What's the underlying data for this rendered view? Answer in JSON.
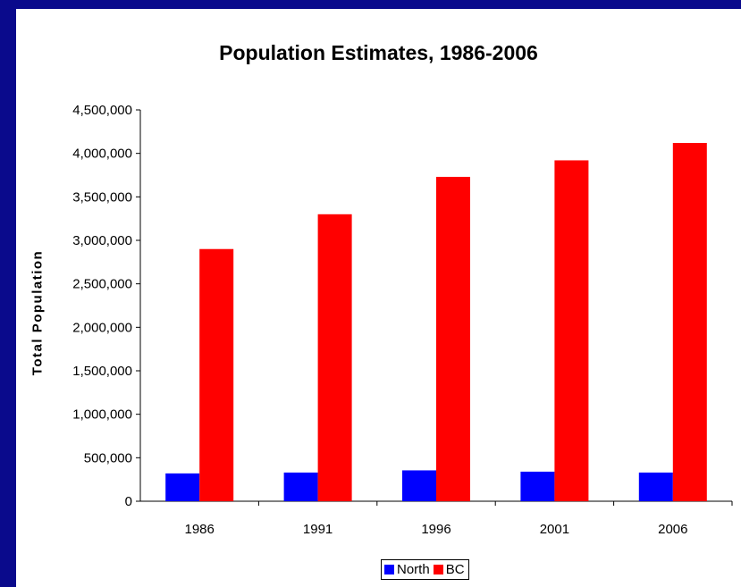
{
  "chart_data": {
    "type": "bar",
    "title": "Population Estimates, 1986-2006",
    "xlabel": "",
    "ylabel": "Total Population",
    "categories": [
      "1986",
      "1991",
      "1996",
      "2001",
      "2006"
    ],
    "series": [
      {
        "name": "North",
        "color": "#0000ff",
        "values": [
          320000,
          330000,
          355000,
          340000,
          330000
        ]
      },
      {
        "name": "BC",
        "color": "#ff0000",
        "values": [
          2900000,
          3300000,
          3730000,
          3920000,
          4120000
        ]
      }
    ],
    "ylim": [
      0,
      4500000
    ],
    "yticks": [
      "0",
      "500,000",
      "1,000,000",
      "1,500,000",
      "2,000,000",
      "2,500,000",
      "3,000,000",
      "3,500,000",
      "4,000,000",
      "4,500,000"
    ],
    "grid": false,
    "legend": "bottom"
  }
}
